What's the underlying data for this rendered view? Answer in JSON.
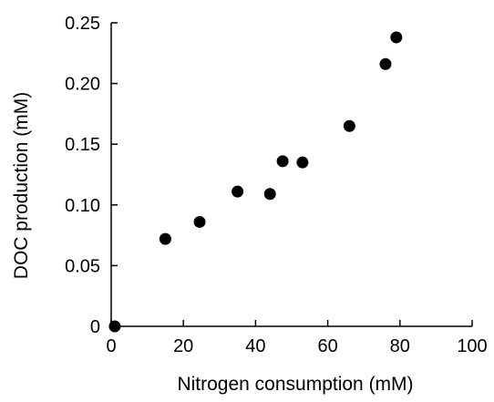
{
  "chart_data": {
    "type": "scatter",
    "title": "",
    "xlabel": "Nitrogen consumption (mM)",
    "ylabel": "DOC production (mM)",
    "xlim": [
      0,
      100
    ],
    "ylim": [
      0,
      0.25
    ],
    "xticks": [
      "0",
      "20",
      "40",
      "60",
      "80",
      "100"
    ],
    "yticks": [
      "0",
      "0.05",
      "0.10",
      "0.15",
      "0.20",
      "0.25"
    ],
    "grid": false,
    "legend": "none",
    "marker_color": "#000000",
    "series": [
      {
        "points": [
          {
            "x": 1,
            "y": 0.0
          },
          {
            "x": 15,
            "y": 0.072
          },
          {
            "x": 24.5,
            "y": 0.086
          },
          {
            "x": 35,
            "y": 0.111
          },
          {
            "x": 44,
            "y": 0.109
          },
          {
            "x": 47.5,
            "y": 0.136
          },
          {
            "x": 53,
            "y": 0.135
          },
          {
            "x": 66,
            "y": 0.165
          },
          {
            "x": 76,
            "y": 0.216
          },
          {
            "x": 79,
            "y": 0.238
          }
        ]
      }
    ]
  }
}
